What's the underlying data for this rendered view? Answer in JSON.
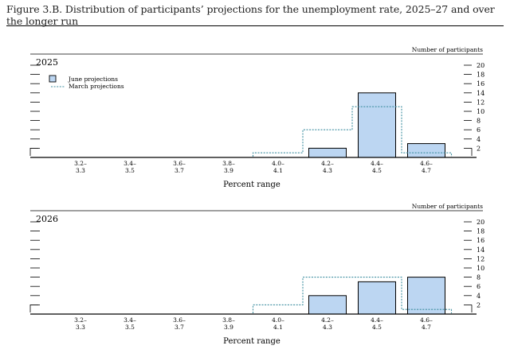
{
  "figure_title": "Figure 3.B. Distribution of participants’ projections for the unemployment rate, 2025–27 and over the longer run",
  "legend": {
    "june_label": "June projections",
    "march_label": "March projections"
  },
  "colors": {
    "june_fill": "#bcd6f2",
    "march_line": "#3f8fa1",
    "axis": "#000000"
  },
  "chart_data": [
    {
      "type": "bar",
      "panel_title": "2025",
      "right_axis_label": "Number of participants",
      "xlabel": "Percent range",
      "categories": [
        "3.2–\n3.3",
        "3.4–\n3.5",
        "3.6–\n3.7",
        "3.8–\n3.9",
        "4.0–\n4.1",
        "4.2–\n4.3",
        "4.4–\n4.5",
        "4.6–\n4.7"
      ],
      "category_top": [
        "3.2–",
        "3.4–",
        "3.6–",
        "3.8–",
        "4.0–",
        "4.2–",
        "4.4–",
        "4.6–"
      ],
      "category_bottom": [
        "3.3",
        "3.5",
        "3.7",
        "3.9",
        "4.1",
        "4.3",
        "4.5",
        "4.7"
      ],
      "series": [
        {
          "name": "June projections",
          "values": [
            0,
            0,
            0,
            0,
            0,
            2,
            14,
            3
          ]
        },
        {
          "name": "March projections",
          "values": [
            0,
            0,
            0,
            0,
            1,
            6,
            11,
            1
          ]
        }
      ],
      "yticks": [
        2,
        4,
        6,
        8,
        10,
        12,
        14,
        16,
        18,
        20
      ],
      "ylim": [
        0,
        20
      ],
      "legend_position": "top-left"
    },
    {
      "type": "bar",
      "panel_title": "2026",
      "right_axis_label": "Number of participants",
      "xlabel": "Percent range",
      "categories": [
        "3.2–\n3.3",
        "3.4–\n3.5",
        "3.6–\n3.7",
        "3.8–\n3.9",
        "4.0–\n4.1",
        "4.2–\n4.3",
        "4.4–\n4.5",
        "4.6–\n4.7"
      ],
      "category_top": [
        "3.2–",
        "3.4–",
        "3.6–",
        "3.8–",
        "4.0–",
        "4.2–",
        "4.4–",
        "4.6–"
      ],
      "category_bottom": [
        "3.3",
        "3.5",
        "3.7",
        "3.9",
        "4.1",
        "4.3",
        "4.5",
        "4.7"
      ],
      "series": [
        {
          "name": "June projections",
          "values": [
            0,
            0,
            0,
            0,
            0,
            4,
            7,
            8
          ]
        },
        {
          "name": "March projections",
          "values": [
            0,
            0,
            0,
            0,
            2,
            8,
            8,
            1
          ]
        }
      ],
      "yticks": [
        2,
        4,
        6,
        8,
        10,
        12,
        14,
        16,
        18,
        20
      ],
      "ylim": [
        0,
        20
      ]
    }
  ]
}
